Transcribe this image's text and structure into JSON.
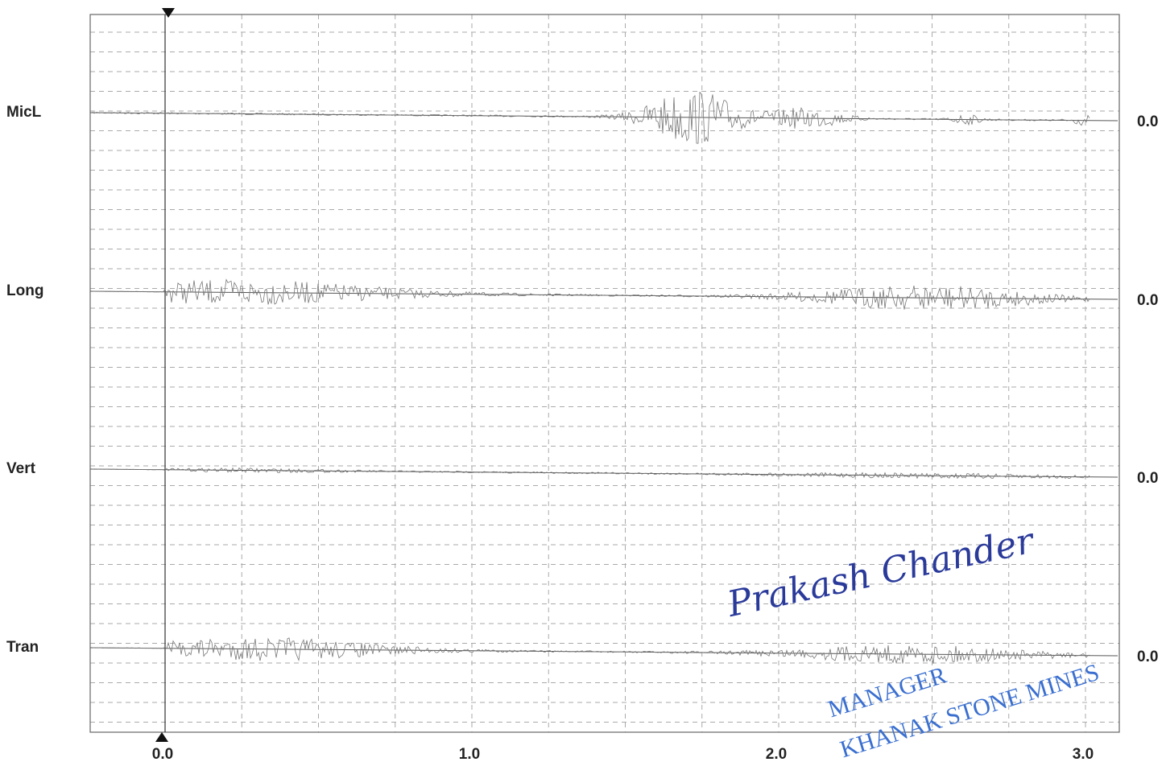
{
  "channels": [
    {
      "label": "MicL",
      "value_label": "0.0"
    },
    {
      "label": "Long",
      "value_label": "0.0"
    },
    {
      "label": "Vert",
      "value_label": "0.0"
    },
    {
      "label": "Tran",
      "value_label": "0.0"
    }
  ],
  "x_axis": {
    "ticks": [
      "0.0",
      "1.0",
      "2.0",
      "3.0"
    ]
  },
  "signature": "Prakash Chander",
  "stamp": {
    "title": "MANAGER",
    "org": "KHANAK STONE MINES"
  }
}
